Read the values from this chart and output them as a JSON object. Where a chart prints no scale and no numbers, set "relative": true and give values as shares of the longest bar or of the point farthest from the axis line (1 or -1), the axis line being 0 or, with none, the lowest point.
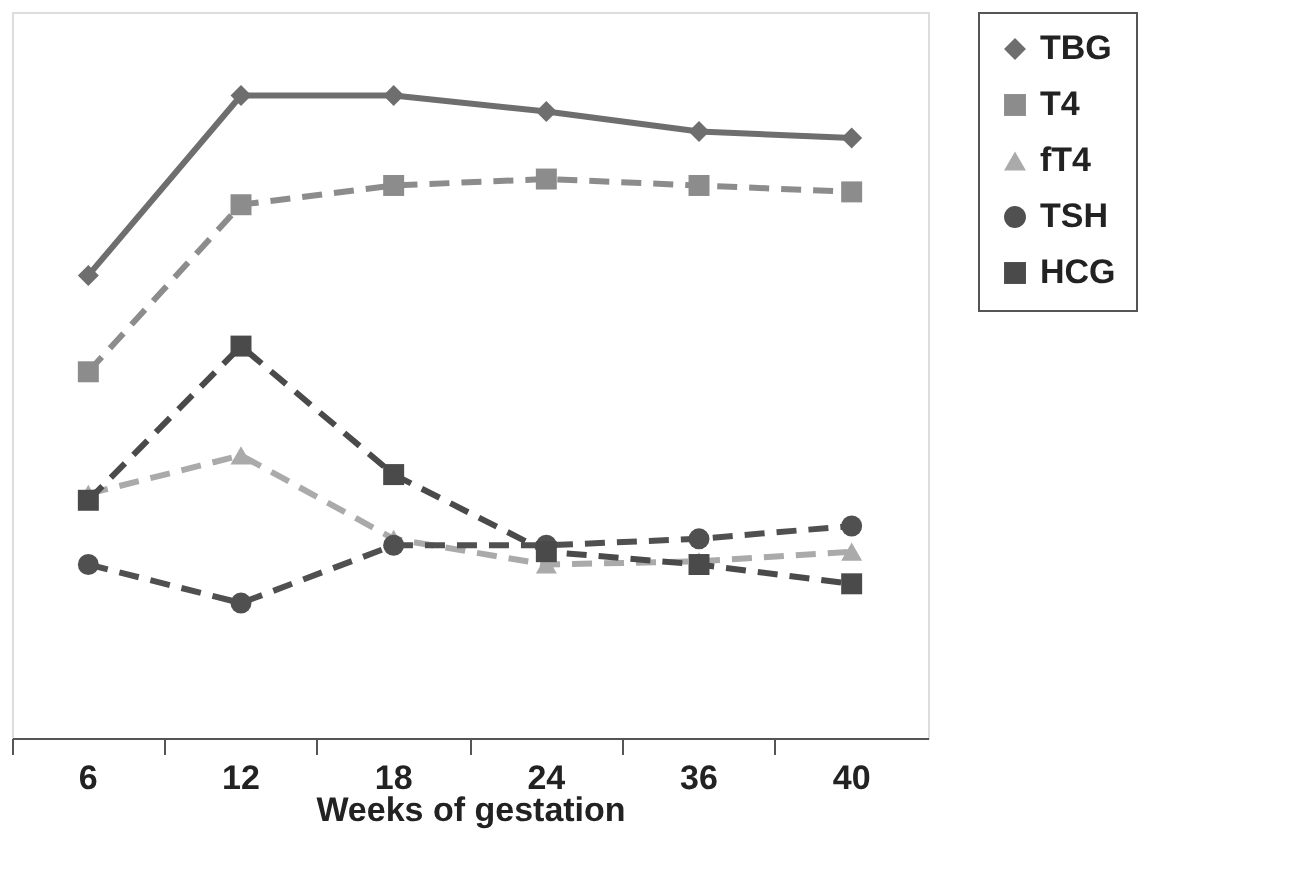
{
  "chart_data": {
    "type": "line",
    "relative": true,
    "xlabel": "Weeks of gestation",
    "categories": [
      "6",
      "12",
      "18",
      "24",
      "36",
      "40"
    ],
    "legend": "right",
    "grid": false,
    "series": [
      {
        "name": "TBG",
        "color": "#6e6e6e",
        "marker": "diamond",
        "line_style": "solid",
        "values": [
          0.72,
          1.0,
          1.0,
          0.975,
          0.944,
          0.934
        ]
      },
      {
        "name": "T4",
        "color": "#8c8c8c",
        "marker": "square",
        "line_style": "dashed",
        "values": [
          0.57,
          0.83,
          0.86,
          0.87,
          0.86,
          0.85
        ]
      },
      {
        "name": "fT4",
        "color": "#aaaaaa",
        "marker": "triangle",
        "line_style": "dashed",
        "values": [
          0.38,
          0.44,
          0.31,
          0.27,
          0.275,
          0.29
        ]
      },
      {
        "name": "TSH",
        "color": "#505050",
        "marker": "circle",
        "line_style": "dashed",
        "values": [
          0.27,
          0.21,
          0.3,
          0.3,
          0.31,
          0.33
        ]
      },
      {
        "name": "HCG",
        "color": "#4a4a4a",
        "marker": "square",
        "line_style": "dashed",
        "values": [
          0.37,
          0.61,
          0.41,
          0.29,
          0.27,
          0.24
        ]
      }
    ]
  }
}
